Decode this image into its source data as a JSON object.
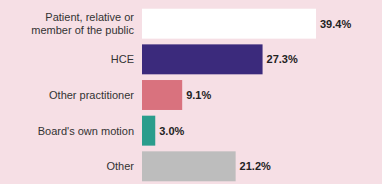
{
  "chart_data": {
    "type": "bar",
    "orientation": "horizontal",
    "data_labels": true,
    "tick_labels": false,
    "categories": [
      "Patient, relative or member of the public",
      "HCE",
      "Other practitioner",
      "Board's own motion",
      "Other"
    ],
    "values": [
      39.4,
      27.3,
      9.1,
      3.0,
      21.2
    ],
    "value_labels": [
      "39.4%",
      "27.3%",
      "9.1%",
      "3.0%",
      "21.2%"
    ],
    "colors": [
      "#ffffff",
      "#3b2a7c",
      "#d9727e",
      "#2a9d8c",
      "#bdbdbd"
    ]
  }
}
